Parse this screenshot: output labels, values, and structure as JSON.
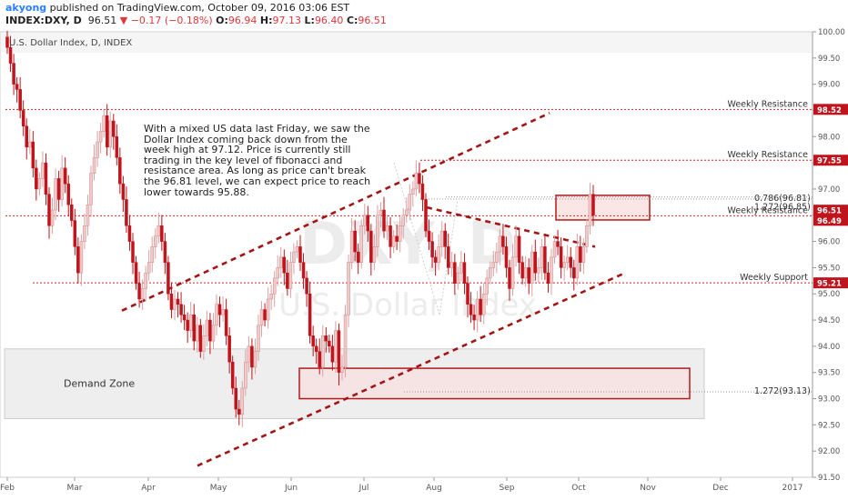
{
  "header": {
    "author": "akyong",
    "published": "published on TradingView.com, October 09, 2016 03:06 EST",
    "symbol": "INDEX:DXY, D",
    "last": "96.51",
    "change": "−0.17 (−0.18%)",
    "open_label": "O:",
    "open": "96.94",
    "high_label": "H:",
    "high": "97.13",
    "low_label": "L:",
    "low": "96.40",
    "close_label": "C:",
    "close": "96.51"
  },
  "chart_data": {
    "type": "candlestick",
    "title": "U.S. Dollar Index, D, INDEX",
    "watermark_symbol": "DXY, D",
    "watermark_name": "U.S. Dollar Index",
    "x_ticks": [
      "Feb",
      "Mar",
      "Apr",
      "May",
      "Jun",
      "Jul",
      "Aug",
      "Sep",
      "Oct",
      "Nov",
      "Dec",
      "2017"
    ],
    "ylim": [
      91.5,
      100.0
    ],
    "y_ticks": [
      "100.00",
      "99.50",
      "99.00",
      "98.50",
      "98.00",
      "97.50",
      "97.00",
      "96.50",
      "96.00",
      "95.50",
      "95.00",
      "94.50",
      "94.00",
      "93.50",
      "93.00",
      "92.50",
      "92.00",
      "91.50"
    ],
    "price_tags": [
      {
        "value": 98.52,
        "text": "98.52"
      },
      {
        "value": 97.55,
        "text": "97.55"
      },
      {
        "value": 96.51,
        "text": "96.51"
      },
      {
        "value": 96.49,
        "text": "96.49"
      },
      {
        "value": 95.21,
        "text": "95.21"
      }
    ],
    "levels": [
      {
        "label": "Weekly Resistance",
        "value": 98.52
      },
      {
        "label": "Weekly Resistance",
        "value": 97.55
      },
      {
        "label": "Weekly Resistance",
        "value": 96.49
      },
      {
        "label": "Weekly Support",
        "value": 95.21
      }
    ],
    "fib_labels": [
      {
        "text": "0.786(96.81)",
        "value": 96.81
      },
      {
        "text": "1.272(96.85)",
        "value": 96.85
      },
      {
        "text": "1.272(93.13)",
        "value": 93.13
      }
    ],
    "zone_label": "Demand Zone",
    "annotation": "With a mixed US data last Friday, we saw the Dollar Index coming back down from the week high at 97.12. Price is currently still trading in the key level of fibonacci and resistance area. As long as price can't break the 96.81 level, we can expect price to reach lower towards 95.88.",
    "colors": {
      "up": "#f2c9c9",
      "down": "#c0141c",
      "levels": "#c62828",
      "channel": "#a31515",
      "tag": "#c0141c"
    },
    "closes": [
      99.7,
      99.4,
      99.0,
      98.9,
      98.5,
      98.2,
      97.8,
      97.9,
      97.4,
      97.0,
      97.2,
      97.5,
      96.9,
      96.3,
      96.6,
      97.2,
      96.8,
      97.4,
      97.1,
      96.7,
      96.4,
      95.9,
      95.4,
      96.0,
      96.3,
      96.7,
      97.3,
      97.6,
      97.9,
      98.1,
      98.4,
      97.8,
      98.3,
      98.0,
      97.6,
      97.1,
      96.8,
      96.3,
      96.0,
      95.6,
      95.2,
      94.9,
      95.1,
      95.4,
      95.6,
      95.9,
      96.1,
      96.3,
      96.0,
      95.6,
      95.0,
      94.7,
      94.9,
      94.8,
      94.6,
      94.5,
      94.3,
      94.6,
      94.1,
      94.4,
      93.9,
      94.2,
      94.5,
      94.1,
      94.4,
      94.8,
      94.6,
      94.7,
      94.2,
      93.7,
      93.2,
      92.8,
      92.7,
      93.2,
      93.7,
      94.0,
      93.6,
      93.9,
      94.4,
      94.7,
      94.5,
      94.9,
      95.0,
      95.3,
      95.5,
      95.7,
      95.4,
      95.1,
      95.6,
      95.8,
      95.9,
      95.6,
      95.3,
      95.0,
      94.2,
      94.0,
      93.9,
      93.6,
      94.2,
      94.1,
      94.0,
      93.7,
      94.3,
      93.5,
      93.6,
      94.6,
      95.6,
      96.2,
      95.8,
      95.6,
      96.3,
      96.5,
      96.2,
      95.6,
      95.9,
      96.5,
      96.6,
      96.2,
      96.3,
      95.9,
      96.1,
      96.0,
      96.3,
      96.5,
      96.6,
      96.9,
      97.0,
      97.3,
      97.1,
      96.8,
      96.2,
      96.0,
      95.7,
      95.6,
      95.9,
      96.2,
      95.9,
      95.5,
      95.6,
      95.2,
      95.4,
      95.6,
      95.2,
      94.8,
      94.6,
      94.5,
      94.9,
      94.6,
      95.0,
      95.3,
      95.5,
      95.6,
      95.8,
      96.1,
      95.9,
      95.5,
      95.1,
      95.7,
      96.1,
      95.6,
      95.3,
      95.5,
      95.2,
      95.8,
      95.4,
      95.5,
      95.9,
      95.4,
      95.2,
      95.7,
      96.0,
      95.9,
      95.5,
      95.6,
      95.7,
      95.5,
      95.3,
      95.9,
      95.6,
      95.9,
      96.3,
      96.9,
      96.5
    ]
  }
}
